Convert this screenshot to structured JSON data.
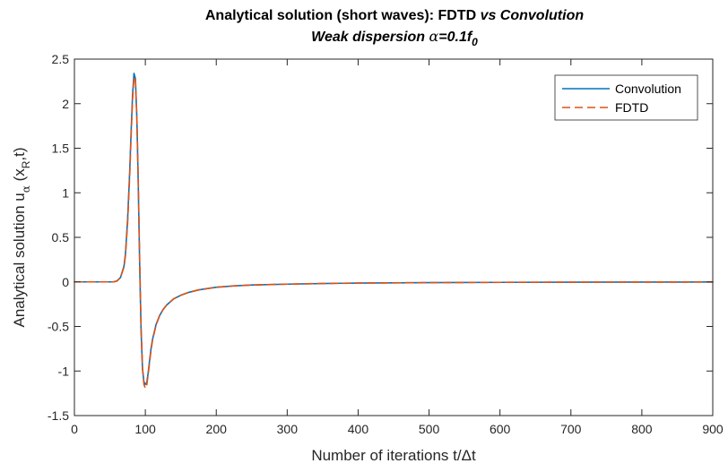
{
  "chart_data": {
    "type": "line",
    "title_line1_prefix": "Analytical solution (short waves): FDTD ",
    "title_line1_vs": "vs",
    "title_line1_suffix": " Convolution",
    "title_line2_prefix": "Weak dispersion ",
    "title_line2_alpha": "α",
    "title_line2_eq": "=0.1f",
    "title_line2_sub": "0",
    "xlabel_prefix": "Number of iterations t/",
    "xlabel_delta": "Δ",
    "xlabel_suffix": "t",
    "ylabel_prefix": "Analytical solution u",
    "ylabel_sub1": "α",
    "ylabel_mid": " (x",
    "ylabel_sub2": "R",
    "ylabel_suffix": ",t)",
    "xlim": [
      0,
      900
    ],
    "ylim": [
      -1.5,
      2.5
    ],
    "xticks": [
      0,
      100,
      200,
      300,
      400,
      500,
      600,
      700,
      800,
      900
    ],
    "yticks": [
      -1.5,
      -1,
      -0.5,
      0,
      0.5,
      1,
      1.5,
      2,
      2.5
    ],
    "ytick_labels": [
      "-1.5",
      "-1",
      "-0.5",
      "0",
      "0.5",
      "1",
      "1.5",
      "2",
      "2.5"
    ],
    "grid": false,
    "legend_position": "top-right",
    "series": [
      {
        "name": "Convolution",
        "color": "#0072BD",
        "style": "solid",
        "x": [
          0,
          55,
          60,
          65,
          70,
          72,
          75,
          78,
          80,
          82,
          84,
          86,
          88,
          90,
          92,
          94,
          96,
          98,
          100,
          102,
          104,
          106,
          108,
          110,
          115,
          120,
          125,
          130,
          140,
          150,
          160,
          175,
          200,
          225,
          250,
          300,
          350,
          400,
          500,
          600,
          700,
          800,
          900
        ],
        "y": [
          0,
          0,
          0.01,
          0.05,
          0.18,
          0.32,
          0.7,
          1.25,
          1.7,
          2.1,
          2.34,
          2.28,
          1.85,
          1.1,
          0.2,
          -0.55,
          -0.98,
          -1.12,
          -1.15,
          -1.13,
          -1.02,
          -0.88,
          -0.75,
          -0.65,
          -0.48,
          -0.38,
          -0.31,
          -0.26,
          -0.19,
          -0.15,
          -0.12,
          -0.09,
          -0.06,
          -0.045,
          -0.035,
          -0.025,
          -0.018,
          -0.013,
          -0.008,
          -0.005,
          -0.003,
          -0.002,
          -0.001
        ]
      },
      {
        "name": "FDTD",
        "color": "#D95319",
        "style": "dashed",
        "x": [
          0,
          55,
          60,
          65,
          70,
          72,
          75,
          78,
          80,
          82,
          84,
          86,
          88,
          90,
          92,
          94,
          96,
          98,
          100,
          102,
          104,
          106,
          108,
          110,
          115,
          120,
          125,
          130,
          140,
          150,
          160,
          175,
          200,
          225,
          250,
          300,
          350,
          400,
          500,
          600,
          700,
          800,
          900
        ],
        "y": [
          0,
          0,
          0.01,
          0.05,
          0.17,
          0.3,
          0.66,
          1.2,
          1.65,
          2.05,
          2.3,
          2.26,
          1.86,
          1.14,
          0.26,
          -0.5,
          -0.96,
          -1.15,
          -1.19,
          -1.16,
          -1.04,
          -0.9,
          -0.77,
          -0.66,
          -0.49,
          -0.38,
          -0.31,
          -0.26,
          -0.19,
          -0.15,
          -0.12,
          -0.09,
          -0.06,
          -0.045,
          -0.035,
          -0.025,
          -0.018,
          -0.013,
          -0.008,
          -0.005,
          -0.003,
          -0.002,
          -0.001
        ]
      }
    ]
  }
}
